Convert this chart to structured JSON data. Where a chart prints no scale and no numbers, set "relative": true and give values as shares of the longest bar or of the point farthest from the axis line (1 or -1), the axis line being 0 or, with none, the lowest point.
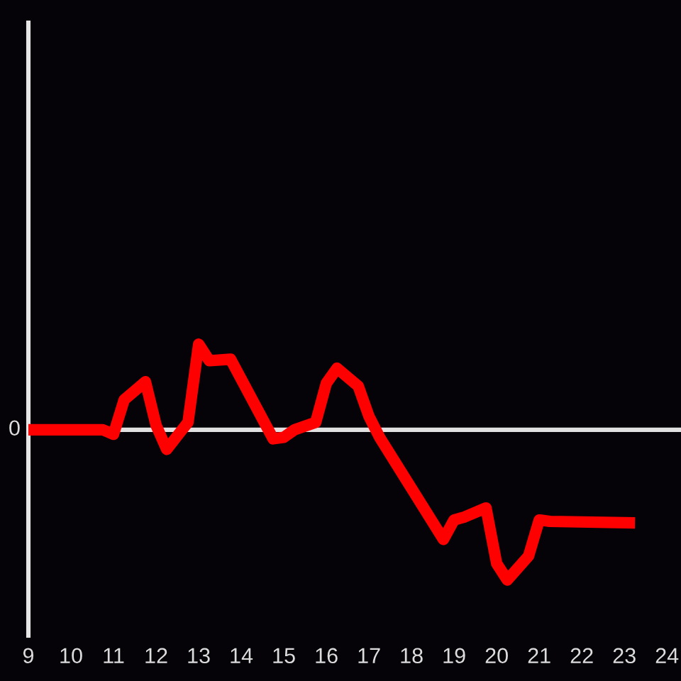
{
  "chart_data": {
    "type": "line",
    "relative": true,
    "x": [
      9,
      10.75,
      11,
      11.25,
      11.75,
      12,
      12.25,
      12.75,
      13,
      13.25,
      13.75,
      14.75,
      15,
      15.25,
      15.75,
      16,
      16.25,
      16.75,
      17,
      17.25,
      18.75,
      19,
      19.25,
      19.75,
      20,
      20.25,
      20.75,
      21,
      21.25,
      23.25
    ],
    "series": [
      {
        "color": "#ff0000",
        "values": [
          0,
          0,
          -0.03,
          0.2,
          0.32,
          0.03,
          -0.13,
          0.05,
          0.57,
          0.46,
          0.47,
          -0.06,
          -0.05,
          0,
          0.05,
          0.31,
          0.41,
          0.29,
          0.09,
          -0.05,
          -0.73,
          -0.6,
          -0.58,
          -0.52,
          -0.89,
          -1,
          -0.84,
          -0.6,
          -0.61,
          -0.62
        ]
      }
    ],
    "xlim": [
      9,
      24.33
    ],
    "xticks": [
      9,
      10,
      11,
      12,
      13,
      14,
      15,
      16,
      17,
      18,
      19,
      20,
      21,
      22,
      23,
      24
    ],
    "ref_lines": [
      {
        "axis": "y",
        "value": 0,
        "label": "0",
        "color": "#e0e0e0"
      }
    ],
    "grid": false,
    "marker": "none",
    "line_style": "solid"
  }
}
